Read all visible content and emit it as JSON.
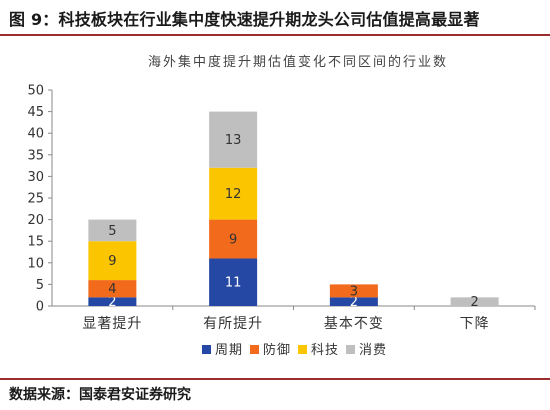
{
  "figure": {
    "title": "图 9：科技板块在行业集中度快速提升期龙头公司估值提高最显著",
    "source": "数据来源：国泰君安证券研究"
  },
  "colors": {
    "rule": "#9b2d2d",
    "axis": "#888888",
    "text": "#222222"
  },
  "chart_data": {
    "type": "bar",
    "stacked": true,
    "title": "海外集中度提升期估值变化不同区间的行业数",
    "xlabel": "",
    "ylabel": "",
    "categories": [
      "显著提升",
      "有所提升",
      "基本不变",
      "下降"
    ],
    "ylim": [
      0,
      50
    ],
    "yticks": [
      0,
      5,
      10,
      15,
      20,
      25,
      30,
      35,
      40,
      45,
      50
    ],
    "grid": false,
    "legend_position": "bottom",
    "series": [
      {
        "name": "周期",
        "color": "#2448a4",
        "values": [
          2,
          11,
          2,
          0
        ]
      },
      {
        "name": "防御",
        "color": "#f26a1b",
        "values": [
          4,
          9,
          3,
          0
        ]
      },
      {
        "name": "科技",
        "color": "#fbc600",
        "values": [
          9,
          12,
          0,
          0
        ]
      },
      {
        "name": "消费",
        "color": "#bfbfbf",
        "values": [
          5,
          13,
          0,
          2
        ]
      }
    ]
  }
}
